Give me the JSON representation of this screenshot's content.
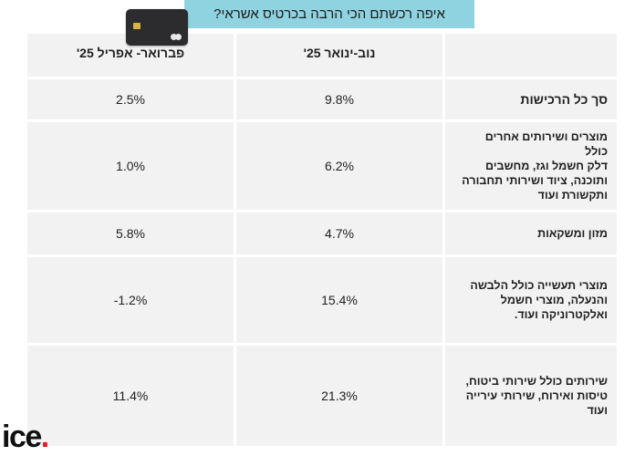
{
  "title": "איפה רכשתם הכי הרבה בכרטיס אשראי?",
  "columns": [
    "פברואר- אפריל 25'",
    "נוב-ינואר 25'",
    ""
  ],
  "rows": [
    {
      "label": "סך כל הרכישות",
      "feb_apr": "2.5%",
      "nov_jan": "9.8%"
    },
    {
      "label": "מוצרים ושירותים אחרים  כולל\nדלק חשמל וגז, מחשבים\nותוכנה, ציוד ושירותי תחבורה\nותקשורת ועוד",
      "feb_apr": "1.0%",
      "nov_jan": "6.2%"
    },
    {
      "label": "מזון ומשקאות",
      "feb_apr": "5.8%",
      "nov_jan": "4.7%"
    },
    {
      "label": "מוצרי תעשייה כולל הלבשה\nוהנעלה, מוצרי חשמל\nואלקטרוניקה ועוד.",
      "feb_apr": "-1.2%",
      "nov_jan": "15.4%"
    },
    {
      "label": " שירותים כולל שירותי ביטוח,\nטיסות ואירוח, שירותי עירייה\nועוד",
      "feb_apr": "11.4%",
      "nov_jan": "21.3%"
    }
  ],
  "logo": {
    "text": "ice",
    "dot": "."
  },
  "icon": "credit-card-icon",
  "colors": {
    "title_bg": "#8fd3e1",
    "cell_bg": "#f2f2f2",
    "logo_dot": "#e01b24"
  }
}
